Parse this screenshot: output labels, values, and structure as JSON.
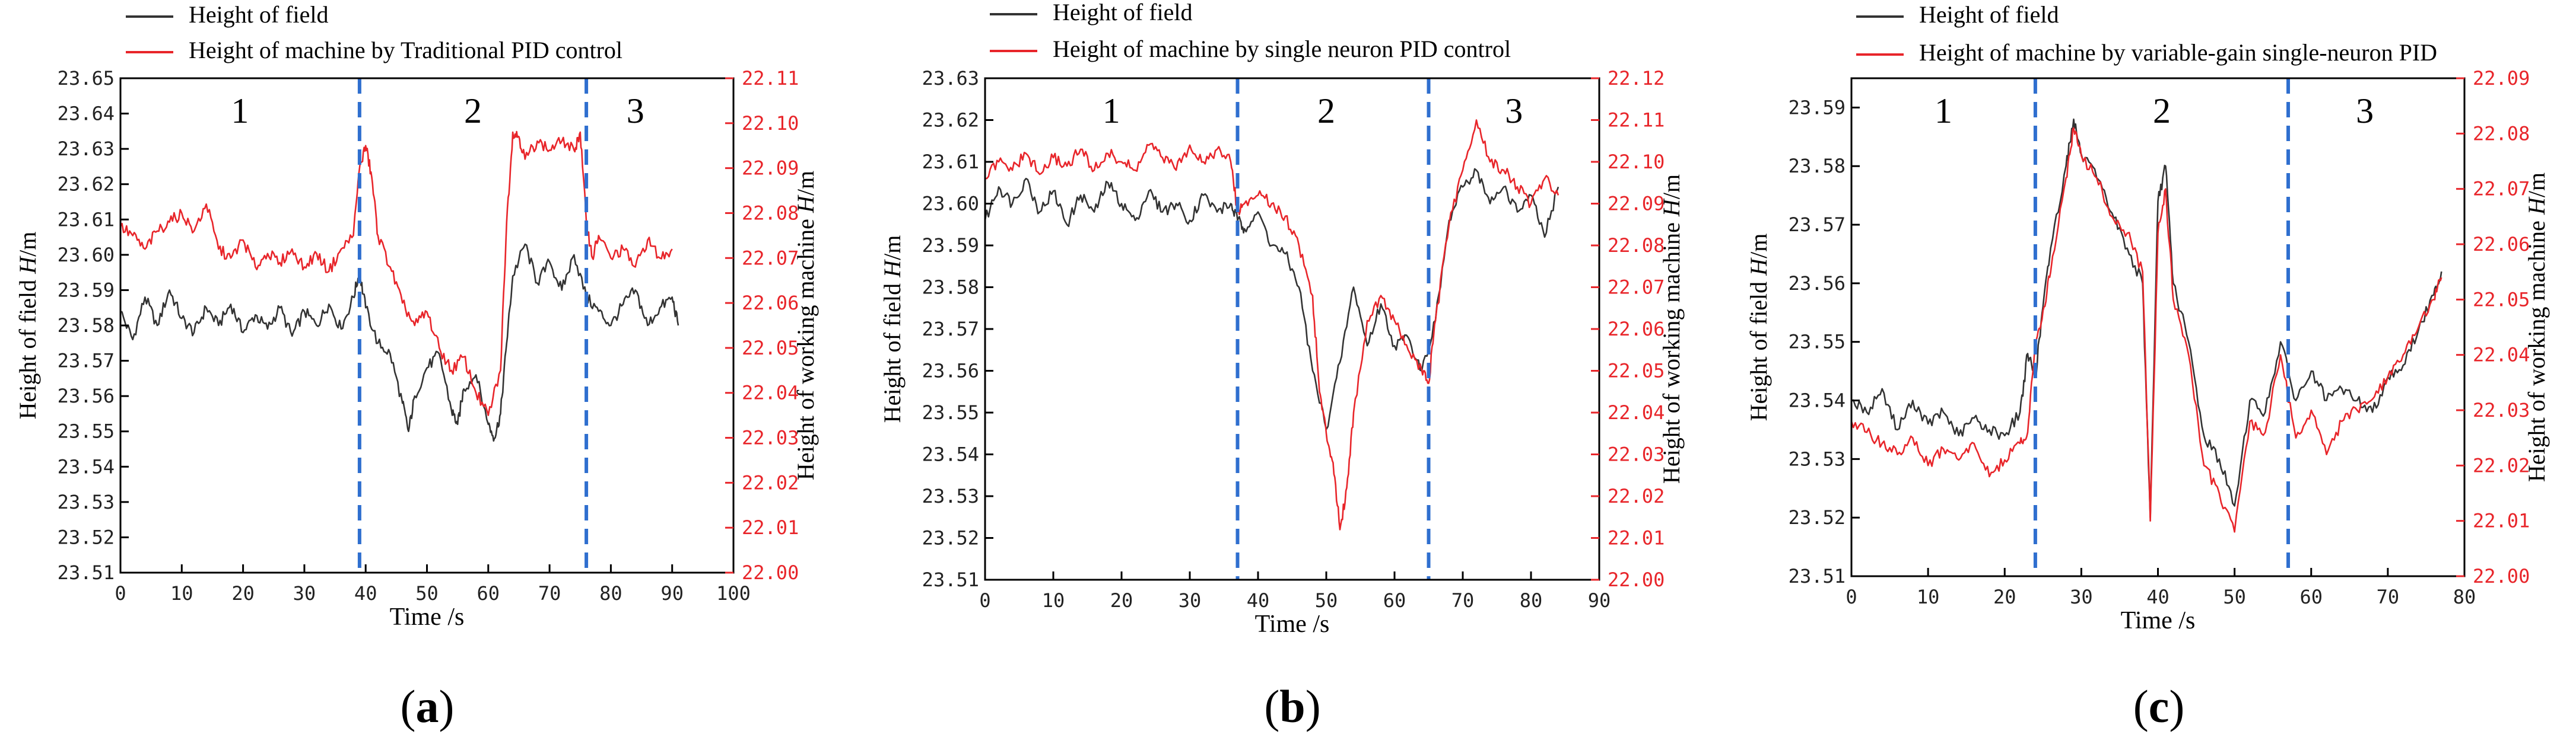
{
  "colors": {
    "field": "#333333",
    "machine": "#e8252a",
    "right_axis": "#e8252a",
    "divider": "#2f6fcf",
    "axis": "#000000",
    "tick_left": "#222222"
  },
  "chart_data": [
    {
      "type": "line",
      "panel_label": "(a)",
      "legend": [
        "Height of field",
        "Height of machine by Traditional PID control"
      ],
      "xlabel": "Time /s",
      "ylabel_left": "Height of field H/m",
      "ylabel_right": "Height of working machine H/m",
      "xlim": [
        0,
        100
      ],
      "xticks": [
        0,
        10,
        20,
        30,
        40,
        50,
        60,
        70,
        80,
        90,
        100
      ],
      "ylim_left": [
        23.51,
        23.65
      ],
      "ylim_right": [
        22.0,
        22.11
      ],
      "left_ticks": [
        "23.51",
        "23.52",
        "23.53",
        "23.54",
        "23.55",
        "23.56",
        "23.57",
        "23.58",
        "23.59",
        "23.60",
        "23.61",
        "23.62",
        "23.63",
        "23.64",
        "23.65"
      ],
      "right_ticks": [
        "22.00",
        "22.01",
        "22.02",
        "22.03",
        "22.04",
        "22.05",
        "22.06",
        "22.07",
        "22.08",
        "22.09",
        "22.10",
        "22.11"
      ],
      "dividers": [
        39,
        76
      ],
      "regions": [
        {
          "x": 19.5,
          "label": "1"
        },
        {
          "x": 57.5,
          "label": "2"
        },
        {
          "x": 84,
          "label": "3"
        }
      ],
      "series": [
        {
          "name": "Height of field",
          "axis": "left",
          "x": [
            0,
            2,
            4,
            6,
            8,
            10,
            12,
            14,
            16,
            18,
            20,
            22,
            24,
            26,
            28,
            30,
            32,
            34,
            36,
            38,
            39,
            40,
            42,
            44,
            46,
            47,
            48,
            50,
            52,
            54,
            55,
            56,
            58,
            60,
            61,
            62,
            63,
            64,
            66,
            68,
            70,
            72,
            74,
            76,
            78,
            80,
            82,
            84,
            86,
            88,
            90,
            91
          ],
          "y": [
            23.584,
            23.576,
            23.588,
            23.58,
            23.59,
            23.582,
            23.578,
            23.585,
            23.58,
            23.586,
            23.578,
            23.583,
            23.579,
            23.585,
            23.577,
            23.584,
            23.58,
            23.586,
            23.579,
            23.588,
            23.595,
            23.585,
            23.575,
            23.572,
            23.558,
            23.55,
            23.56,
            23.568,
            23.572,
            23.556,
            23.552,
            23.562,
            23.566,
            23.552,
            23.548,
            23.555,
            23.575,
            23.594,
            23.603,
            23.592,
            23.598,
            23.59,
            23.6,
            23.588,
            23.584,
            23.58,
            23.586,
            23.59,
            23.58,
            23.585,
            23.588,
            23.58
          ]
        },
        {
          "name": "Height of machine by Traditional PID control",
          "axis": "right",
          "x": [
            0,
            2,
            4,
            6,
            8,
            10,
            12,
            14,
            16,
            18,
            20,
            22,
            24,
            26,
            28,
            30,
            32,
            34,
            36,
            38,
            39,
            40,
            41,
            42,
            44,
            46,
            48,
            50,
            52,
            54,
            56,
            58,
            60,
            62,
            63,
            64,
            65,
            66,
            68,
            70,
            72,
            74,
            75,
            76,
            77,
            78,
            80,
            82,
            84,
            86,
            88,
            90
          ],
          "y": [
            22.077,
            22.075,
            22.072,
            22.076,
            22.078,
            22.08,
            22.076,
            22.082,
            22.072,
            22.07,
            22.074,
            22.068,
            22.071,
            22.069,
            22.072,
            22.068,
            22.071,
            22.067,
            22.072,
            22.075,
            22.09,
            22.095,
            22.088,
            22.075,
            22.068,
            22.06,
            22.055,
            22.058,
            22.05,
            22.045,
            22.048,
            22.04,
            22.035,
            22.045,
            22.078,
            22.098,
            22.097,
            22.092,
            22.096,
            22.094,
            22.096,
            22.094,
            22.098,
            22.078,
            22.07,
            22.075,
            22.07,
            22.072,
            22.068,
            22.074,
            22.07,
            22.072
          ]
        }
      ]
    },
    {
      "type": "line",
      "panel_label": "(b)",
      "legend": [
        "Height of field",
        "Height of machine by single neuron PID control"
      ],
      "xlabel": "Time /s",
      "ylabel_left": "Height of field H/m",
      "ylabel_right": "Height of working machine H/m",
      "xlim": [
        0,
        90
      ],
      "xticks": [
        0,
        10,
        20,
        30,
        40,
        50,
        60,
        70,
        80,
        90
      ],
      "ylim_left": [
        23.51,
        23.63
      ],
      "ylim_right": [
        22.0,
        22.12
      ],
      "left_ticks": [
        "23.51",
        "23.52",
        "23.53",
        "23.54",
        "23.55",
        "23.56",
        "23.57",
        "23.58",
        "23.59",
        "23.60",
        "23.61",
        "23.62",
        "23.63"
      ],
      "right_ticks": [
        "22.00",
        "22.01",
        "22.02",
        "22.03",
        "22.04",
        "22.05",
        "22.06",
        "22.07",
        "22.08",
        "22.09",
        "22.10",
        "22.11",
        "22.12"
      ],
      "dividers": [
        37,
        65
      ],
      "regions": [
        {
          "x": 18.5,
          "label": "1"
        },
        {
          "x": 50,
          "label": "2"
        },
        {
          "x": 77.5,
          "label": "3"
        }
      ],
      "series": [
        {
          "name": "Height of field",
          "axis": "left",
          "x": [
            0,
            2,
            4,
            6,
            8,
            10,
            12,
            14,
            16,
            18,
            20,
            22,
            24,
            26,
            28,
            30,
            32,
            34,
            36,
            37,
            38,
            40,
            42,
            44,
            46,
            48,
            50,
            52,
            54,
            56,
            58,
            60,
            62,
            64,
            66,
            68,
            70,
            72,
            74,
            76,
            78,
            80,
            82,
            84
          ],
          "y": [
            23.596,
            23.604,
            23.6,
            23.606,
            23.598,
            23.603,
            23.595,
            23.602,
            23.598,
            23.605,
            23.6,
            23.596,
            23.603,
            23.598,
            23.6,
            23.596,
            23.602,
            23.598,
            23.6,
            23.596,
            23.594,
            23.598,
            23.59,
            23.588,
            23.58,
            23.56,
            23.546,
            23.562,
            23.58,
            23.566,
            23.576,
            23.566,
            23.568,
            23.56,
            23.572,
            23.596,
            23.604,
            23.608,
            23.6,
            23.604,
            23.598,
            23.602,
            23.592,
            23.604
          ]
        },
        {
          "name": "Height of machine by single neuron PID control",
          "axis": "right",
          "x": [
            0,
            2,
            4,
            6,
            8,
            10,
            12,
            14,
            16,
            18,
            20,
            22,
            24,
            26,
            28,
            30,
            32,
            34,
            36,
            37,
            38,
            40,
            42,
            44,
            46,
            48,
            49,
            50,
            51,
            52,
            53,
            54,
            56,
            58,
            60,
            62,
            64,
            65,
            66,
            68,
            70,
            72,
            74,
            76,
            78,
            80,
            82,
            84
          ],
          "y": [
            22.096,
            22.1,
            22.098,
            22.102,
            22.097,
            22.101,
            22.099,
            22.103,
            22.098,
            22.102,
            22.1,
            22.098,
            22.104,
            22.101,
            22.098,
            22.104,
            22.1,
            22.103,
            22.1,
            22.088,
            22.09,
            22.092,
            22.09,
            22.087,
            22.08,
            22.068,
            22.045,
            22.035,
            22.028,
            22.012,
            22.022,
            22.04,
            22.062,
            22.068,
            22.062,
            22.055,
            22.05,
            22.047,
            22.062,
            22.085,
            22.098,
            22.11,
            22.1,
            22.098,
            22.094,
            22.09,
            22.096,
            22.092
          ]
        }
      ]
    },
    {
      "type": "line",
      "panel_label": "(c)",
      "legend": [
        "Height of field",
        "Height of machine by variable-gain single-neuron PID"
      ],
      "xlabel": "Time /s",
      "ylabel_left": "Height of field H/m",
      "ylabel_right": "Height of working machine H/m",
      "xlim": [
        0,
        80
      ],
      "xticks": [
        0,
        10,
        20,
        30,
        40,
        50,
        60,
        70,
        80
      ],
      "ylim_left": [
        23.51,
        23.595
      ],
      "ylim_right": [
        22.0,
        22.09
      ],
      "left_ticks": [
        "23.51",
        "23.52",
        "23.53",
        "23.54",
        "23.55",
        "23.56",
        "23.57",
        "23.58",
        "23.59"
      ],
      "right_ticks": [
        "22.00",
        "22.01",
        "22.02",
        "22.03",
        "22.04",
        "22.05",
        "22.06",
        "22.07",
        "22.08",
        "22.09"
      ],
      "dividers": [
        24,
        57
      ],
      "regions": [
        {
          "x": 12,
          "label": "1"
        },
        {
          "x": 40.5,
          "label": "2"
        },
        {
          "x": 67,
          "label": "3"
        }
      ],
      "series": [
        {
          "name": "Height of field",
          "axis": "left",
          "x": [
            0,
            2,
            4,
            6,
            8,
            10,
            12,
            14,
            16,
            18,
            20,
            22,
            23,
            24,
            25,
            26,
            28,
            29,
            30,
            32,
            34,
            36,
            38,
            39,
            40,
            41,
            42,
            44,
            46,
            48,
            50,
            52,
            54,
            56,
            58,
            60,
            62,
            64,
            66,
            68,
            70,
            72,
            74,
            76,
            77
          ],
          "y": [
            23.54,
            23.538,
            23.542,
            23.535,
            23.54,
            23.536,
            23.538,
            23.534,
            23.537,
            23.535,
            23.534,
            23.538,
            23.548,
            23.544,
            23.556,
            23.566,
            23.58,
            23.588,
            23.582,
            23.578,
            23.572,
            23.566,
            23.56,
            23.52,
            23.574,
            23.58,
            23.56,
            23.55,
            23.534,
            23.53,
            23.522,
            23.54,
            23.538,
            23.55,
            23.54,
            23.545,
            23.54,
            23.542,
            23.54,
            23.538,
            23.544,
            23.546,
            23.552,
            23.558,
            23.562
          ]
        },
        {
          "name": "Height of machine by variable-gain single-neuron PID",
          "axis": "right",
          "x": [
            0,
            2,
            4,
            6,
            8,
            10,
            12,
            14,
            16,
            18,
            20,
            22,
            23,
            24,
            25,
            26,
            28,
            29,
            30,
            32,
            34,
            36,
            38,
            39,
            40,
            41,
            42,
            44,
            46,
            48,
            50,
            52,
            54,
            56,
            58,
            60,
            62,
            64,
            66,
            68,
            70,
            72,
            74,
            76,
            77
          ],
          "y": [
            22.028,
            22.026,
            22.024,
            22.022,
            22.025,
            22.02,
            22.023,
            22.021,
            22.024,
            22.018,
            22.021,
            22.024,
            22.026,
            22.042,
            22.048,
            22.055,
            22.072,
            22.081,
            22.076,
            22.072,
            22.065,
            22.062,
            22.055,
            22.01,
            22.062,
            22.07,
            22.05,
            22.04,
            22.02,
            22.015,
            22.008,
            22.028,
            22.026,
            22.04,
            22.025,
            22.03,
            22.022,
            22.028,
            22.03,
            22.032,
            22.036,
            22.04,
            22.045,
            22.05,
            22.054
          ]
        }
      ]
    }
  ]
}
